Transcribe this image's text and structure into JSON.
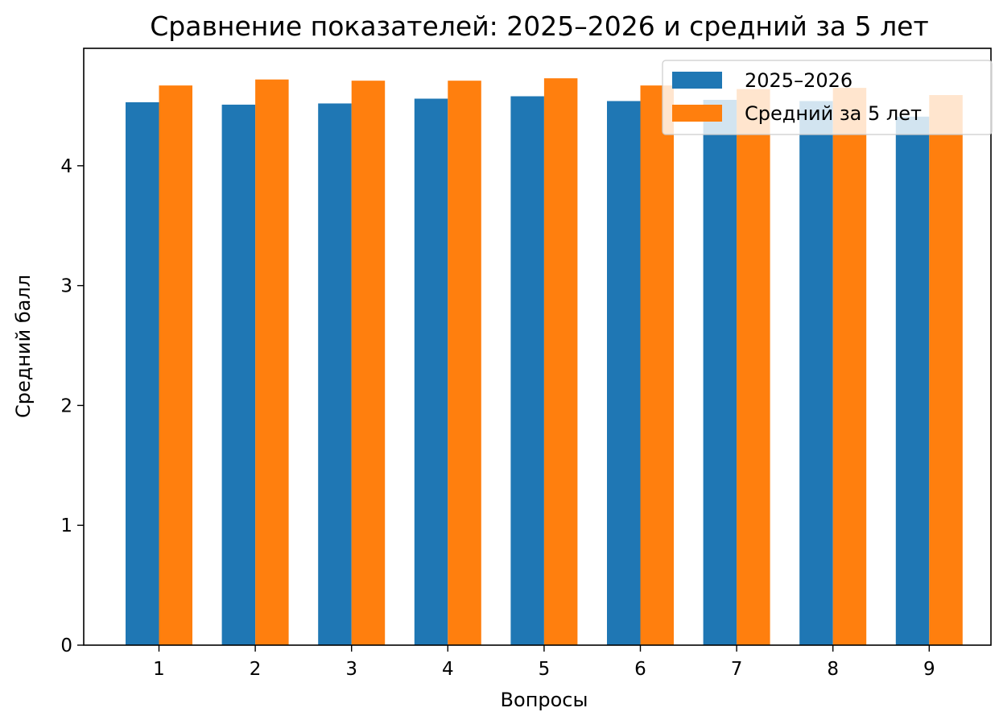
{
  "chart_data": {
    "type": "bar",
    "title": "Сравнение показателей: 2025–2026 и средний за 5 лет",
    "xlabel": "Вопросы",
    "ylabel": "Средний балл",
    "categories": [
      "1",
      "2",
      "3",
      "4",
      "5",
      "6",
      "7",
      "8",
      "9"
    ],
    "series": [
      {
        "name": "2025–2026",
        "color": "#1f77b4",
        "values": [
          4.53,
          4.51,
          4.52,
          4.56,
          4.58,
          4.54,
          4.55,
          4.54,
          4.41
        ]
      },
      {
        "name": "Средний за 5 лет",
        "color": "#ff7f0e",
        "values": [
          4.67,
          4.72,
          4.71,
          4.71,
          4.73,
          4.67,
          4.64,
          4.65,
          4.59
        ]
      }
    ],
    "ylim": [
      0,
      4.98
    ],
    "yticks": [
      0,
      1,
      2,
      3,
      4
    ],
    "grid": false,
    "legend_position": "top-right"
  }
}
